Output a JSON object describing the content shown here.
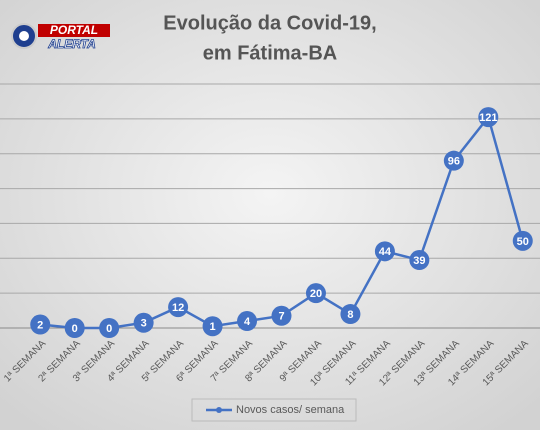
{
  "logo": {
    "line1": "PORTAL",
    "line2": "ALERTA"
  },
  "chart_data": {
    "type": "line",
    "title": [
      "Evolução da Covid-19,",
      "em Fátima-BA"
    ],
    "categories": [
      "1ª SEMANA",
      "2ª SEMANA",
      "3ª SEMANA",
      "4ª SEMANA",
      "5ª SEMANA",
      "6ª SEMANA",
      "7ª SEMANA",
      "8ª SEMANA",
      "9ª SEMANA",
      "10ª SEMANA",
      "11ª SEMANA",
      "12ª SEMANA",
      "13ª SEMANA",
      "14ª SEMANA",
      "15ª SEMANA"
    ],
    "series": [
      {
        "name": "Novos casos/ semana",
        "color": "#4472c4",
        "values": [
          2,
          0,
          0,
          3,
          12,
          1,
          4,
          7,
          20,
          8,
          44,
          39,
          96,
          121,
          50
        ]
      }
    ],
    "ylim": [
      0,
      140
    ],
    "yticks": [
      0,
      20,
      40,
      60,
      80,
      100,
      120,
      140
    ],
    "grid": true,
    "legend": "bottom"
  }
}
